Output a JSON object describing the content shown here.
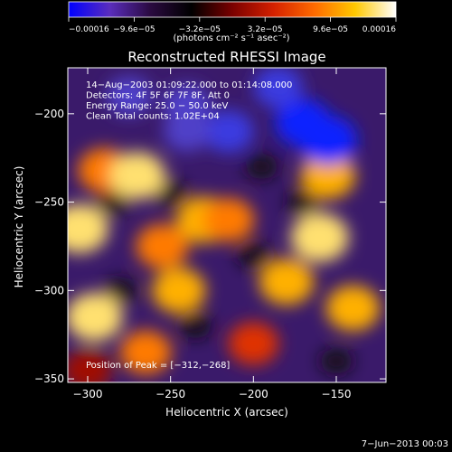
{
  "chart_data": {
    "type": "heatmap",
    "title": "Reconstructed RHESSI Image",
    "xlabel": "Heliocentric X (arcsec)",
    "ylabel": "Heliocentric Y (arcsec)",
    "xlim": [
      -312,
      -120
    ],
    "ylim": [
      -352,
      -174
    ],
    "x_ticks": [
      -300,
      -250,
      -200,
      -150
    ],
    "y_ticks": [
      -350,
      -300,
      -250,
      -200
    ],
    "x_tick_labels": [
      "−300",
      "−250",
      "−200",
      "−150"
    ],
    "y_tick_labels": [
      "−350",
      "−300",
      "−250",
      "−200"
    ],
    "info_lines": [
      "14−Aug−2003 01:09:22.000 to 01:14:08.000",
      "Detectors: 4F 5F 6F 7F 8F, Att 0",
      "Energy Range: 25.0 − 50.0 keV",
      "Clean     Total counts: 1.02E+04"
    ],
    "peak_label": "Position of Peak = [−312,−268]",
    "peak_position": [
      -312,
      -268
    ],
    "colorbar": {
      "range": [
        -0.00016,
        0.00016
      ],
      "tick_labels": [
        "−0.00016",
        "−9.6e−05",
        "−3.2e−05",
        "3.2e−05",
        "9.6e−05",
        "0.00016"
      ],
      "unit_label": "(photons cm⁻² s⁻¹ asec⁻²)",
      "colormap": [
        "#0000ff",
        "#5a2dbd",
        "#2a0a40",
        "#000000",
        "#7a0000",
        "#d42000",
        "#ff6a00",
        "#ffc800",
        "#ffffff"
      ]
    },
    "sources": [
      {
        "x": -305,
        "y": -265,
        "intensity": 1.0
      },
      {
        "x": -296,
        "y": -315,
        "intensity": 0.95
      },
      {
        "x": -290,
        "y": -232,
        "intensity": 0.75
      },
      {
        "x": -270,
        "y": -235,
        "intensity": 0.9
      },
      {
        "x": -255,
        "y": -275,
        "intensity": 0.75
      },
      {
        "x": -245,
        "y": -300,
        "intensity": 0.8
      },
      {
        "x": -230,
        "y": -260,
        "intensity": 0.85
      },
      {
        "x": -215,
        "y": -260,
        "intensity": 0.7
      },
      {
        "x": -180,
        "y": -295,
        "intensity": 0.85
      },
      {
        "x": -160,
        "y": -270,
        "intensity": 1.0
      },
      {
        "x": -155,
        "y": -235,
        "intensity": 0.85
      },
      {
        "x": -140,
        "y": -310,
        "intensity": 0.8
      },
      {
        "x": -200,
        "y": -330,
        "intensity": 0.65
      },
      {
        "x": -265,
        "y": -335,
        "intensity": 0.7
      },
      {
        "x": -300,
        "y": -345,
        "intensity": 0.55
      },
      {
        "x": -215,
        "y": -210,
        "intensity": -0.65
      },
      {
        "x": -170,
        "y": -205,
        "intensity": -0.9
      },
      {
        "x": -155,
        "y": -215,
        "intensity": -1.0
      },
      {
        "x": -240,
        "y": -195,
        "intensity": -0.55
      },
      {
        "x": -185,
        "y": -185,
        "intensity": -0.6
      },
      {
        "x": -240,
        "y": -210,
        "intensity": -0.5
      },
      {
        "x": -275,
        "y": -190,
        "intensity": -0.45
      }
    ]
  },
  "footer": {
    "date": "7−Jun−2013 00:03"
  }
}
